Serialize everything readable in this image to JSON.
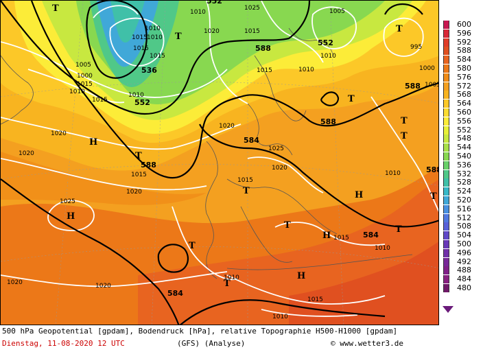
{
  "map": {
    "title_line": "500 hPa Geopotential [gpdam], Bodendruck [hPa], relative Topographie H500-H1000 [gpdam]",
    "date_line": "Dienstag, 11-08-2020  12 UTC",
    "model_line": "(GFS)  (Analyse)",
    "copyright": "© www.wetter3.de",
    "colors": {
      "date": "#cc0000",
      "base": "#f0a020"
    },
    "geopotential_labels": [
      "552",
      "536",
      "552",
      "588",
      "552",
      "588",
      "588",
      "584",
      "588",
      "584",
      "584",
      "588"
    ],
    "pressure_labels": [
      "1010",
      "1015",
      "1010",
      "1010",
      "1015",
      "1020",
      "1025",
      "1005",
      "1015",
      "1015",
      "1010",
      "995",
      "1000",
      "1005",
      "1010",
      "1005",
      "1000",
      "1015",
      "1020",
      "1020",
      "1020",
      "1025",
      "1020",
      "1015",
      "1015",
      "1020",
      "1010",
      "1010",
      "1020",
      "1015",
      "1010",
      "1015",
      "1010",
      "1025",
      "1015",
      "1010",
      "1015",
      "1020",
      "1010"
    ],
    "highs_lows": [
      "T",
      "T",
      "T",
      "T",
      "H",
      "T",
      "H",
      "H",
      "T",
      "T",
      "T",
      "T",
      "T",
      "H",
      "T",
      "T",
      "T",
      "H"
    ]
  },
  "legend": {
    "labels": [
      "600",
      "596",
      "592",
      "588",
      "584",
      "580",
      "576",
      "572",
      "568",
      "564",
      "560",
      "556",
      "552",
      "548",
      "544",
      "540",
      "536",
      "532",
      "528",
      "524",
      "520",
      "516",
      "512",
      "508",
      "504",
      "500",
      "496",
      "492",
      "488",
      "484",
      "480"
    ],
    "colors": [
      "#c81850",
      "#d82838",
      "#e03c28",
      "#e05020",
      "#e86420",
      "#ec7818",
      "#f08c18",
      "#f4a020",
      "#f8b420",
      "#fcc828",
      "#fcdc30",
      "#fcec38",
      "#e8f038",
      "#c8e840",
      "#a8e048",
      "#88d850",
      "#68d068",
      "#50c888",
      "#40c0a8",
      "#38b8c8",
      "#40a8d8",
      "#4890e0",
      "#5078e0",
      "#5860d8",
      "#6048c8",
      "#6838b8",
      "#7030a8",
      "#782898",
      "#802088",
      "#882080",
      "#701868"
    ]
  }
}
